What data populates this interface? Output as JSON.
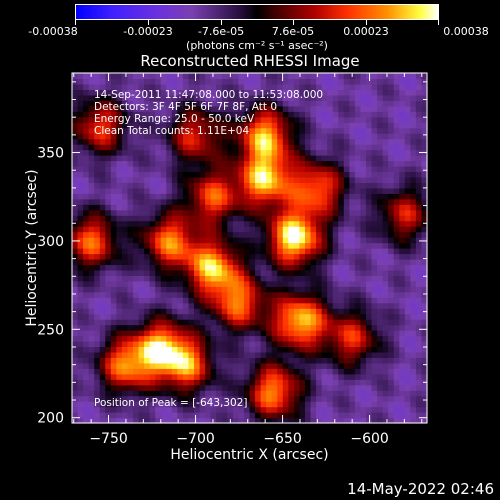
{
  "colorbar": {
    "tick_labels": [
      "-0.00038",
      "-0.00023",
      "-7.6e-05",
      "7.6e-05",
      "0.00023",
      "0.00038"
    ],
    "units": "(photons cm⁻² s⁻¹ asec⁻²)"
  },
  "chart_data": {
    "type": "heatmap",
    "title": "Reconstructed RHESSI Image",
    "xlabel": "Heliocentric X (arcsec)",
    "ylabel": "Heliocentric Y (arcsec)",
    "xlim": [
      -771,
      -567
    ],
    "ylim": [
      197,
      395
    ],
    "x_ticks": [
      -750,
      -700,
      -650,
      -600
    ],
    "y_ticks": [
      200,
      250,
      300,
      350
    ],
    "value_range": [
      -0.00038,
      0.00038
    ],
    "annotations": [
      "14-Sep-2011 11:47:08.000 to 11:53:08.000",
      "Detectors: 3F 4F 5F 6F 7F 8F, Att 0",
      "Energy Range: 25.0 - 50.0 keV",
      "Clean    Total counts: 1.11E+04"
    ],
    "peak_text": "Position of Peak = [-643,302]",
    "peak": [
      -643,
      302
    ],
    "bright_regions": [
      {
        "x": -643,
        "y": 302,
        "value": 0.00038
      },
      {
        "x": -660,
        "y": 335,
        "value": 0.0003
      },
      {
        "x": -690,
        "y": 285,
        "value": 0.0003
      },
      {
        "x": -640,
        "y": 255,
        "value": 0.00032
      },
      {
        "x": -715,
        "y": 300,
        "value": 0.00024
      },
      {
        "x": -740,
        "y": 230,
        "value": 0.00024
      },
      {
        "x": -660,
        "y": 360,
        "value": 0.00028
      },
      {
        "x": -760,
        "y": 300,
        "value": 0.00022
      },
      {
        "x": -720,
        "y": 240,
        "value": 0.00026
      },
      {
        "x": -655,
        "y": 215,
        "value": 0.00026
      },
      {
        "x": -705,
        "y": 230,
        "value": 0.00022
      },
      {
        "x": -690,
        "y": 325,
        "value": 0.0002
      },
      {
        "x": -630,
        "y": 330,
        "value": 0.00022
      },
      {
        "x": -755,
        "y": 365,
        "value": 0.00018
      },
      {
        "x": -610,
        "y": 245,
        "value": 0.00016
      },
      {
        "x": -580,
        "y": 315,
        "value": 0.00014
      },
      {
        "x": -675,
        "y": 265,
        "value": 0.00022
      },
      {
        "x": -700,
        "y": 360,
        "value": 0.00016
      }
    ]
  },
  "footer": {
    "timestamp": "14-May-2022 02:46"
  }
}
